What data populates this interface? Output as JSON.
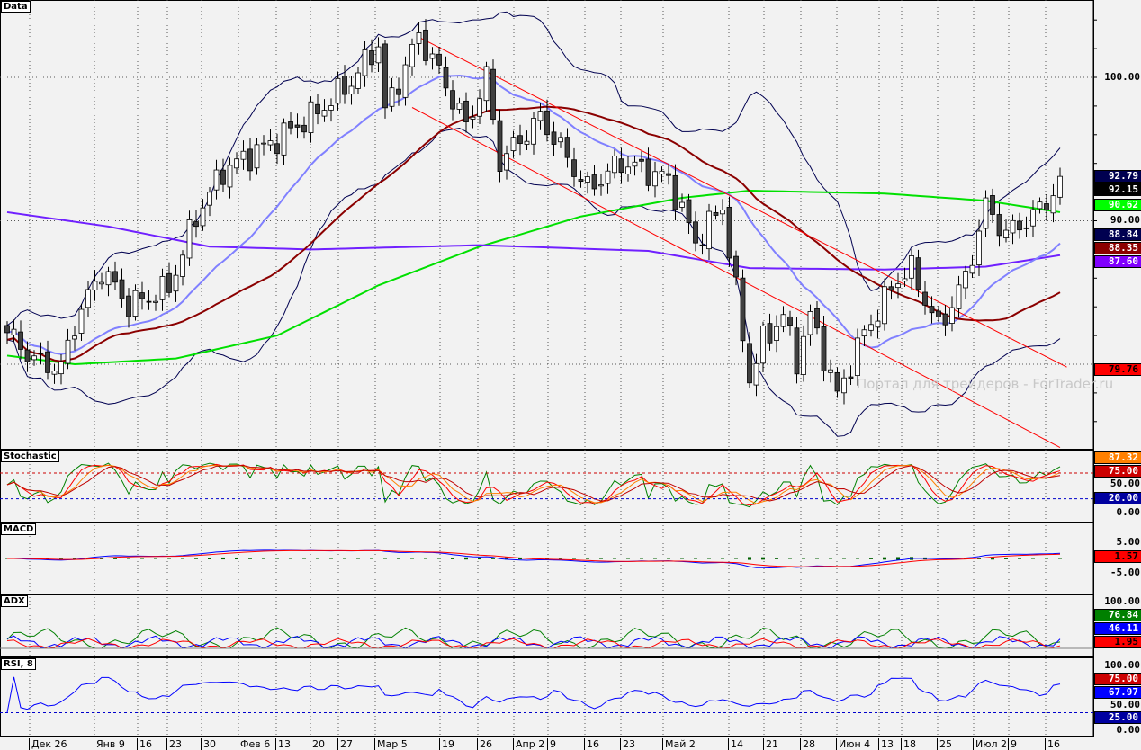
{
  "panels": {
    "main": "Data",
    "stoch": "Stochastic",
    "macd": "MACD",
    "adx": "ADX",
    "rsi": "RSI, 8"
  },
  "watermark": "Портал для трейдеров - ForTrader.ru",
  "chart_data": [
    {
      "type": "line",
      "title": "Data",
      "subtype": "candlestick",
      "ylim": [
        74,
        105
      ],
      "y_ticks": [
        "100.00",
        "90.00"
      ],
      "x_tick_labels": [
        "Дек 26",
        "Янв 9",
        "16",
        "23",
        "30",
        "Фев 6",
        "13",
        "20",
        "27",
        "Мар 5",
        "19",
        "26",
        "Апр 2",
        "9",
        "16",
        "23",
        "Май 2",
        "14",
        "21",
        "28",
        "Июн 4",
        "13",
        "18",
        "25",
        "Июл 2",
        "9",
        "16"
      ],
      "close_keypoints": [
        [
          0,
          82.2
        ],
        [
          4,
          80.3
        ],
        [
          8,
          79.7
        ],
        [
          10,
          82.8
        ],
        [
          14,
          86.6
        ],
        [
          18,
          84.1
        ],
        [
          24,
          85.3
        ],
        [
          28,
          90.3
        ],
        [
          32,
          93.5
        ],
        [
          39,
          95.4
        ],
        [
          46,
          97.6
        ],
        [
          51,
          99.7
        ],
        [
          55,
          102.3
        ],
        [
          56,
          97.6
        ],
        [
          61,
          102.9
        ],
        [
          64,
          100.4
        ],
        [
          68,
          96.6
        ],
        [
          71,
          100
        ],
        [
          73,
          94.1
        ],
        [
          79,
          97.2
        ],
        [
          86,
          92.2
        ],
        [
          91,
          94.1
        ],
        [
          98,
          92.9
        ],
        [
          102,
          88.5
        ],
        [
          106,
          91
        ],
        [
          110,
          79
        ],
        [
          112,
          81.6
        ],
        [
          115,
          83.4
        ],
        [
          117,
          80.3
        ],
        [
          119,
          83.4
        ],
        [
          123,
          77.8
        ],
        [
          127,
          82.2
        ],
        [
          132,
          86
        ],
        [
          134,
          86.6
        ],
        [
          138,
          82.5
        ],
        [
          142,
          86
        ],
        [
          145,
          91
        ],
        [
          148,
          89.1
        ],
        [
          152,
          90.3
        ],
        [
          156,
          92.5
        ]
      ],
      "ma_green_keypoints": [
        [
          0,
          80.6
        ],
        [
          10,
          80.0
        ],
        [
          25,
          80.4
        ],
        [
          40,
          82
        ],
        [
          55,
          85.5
        ],
        [
          70,
          88.2
        ],
        [
          85,
          90.3
        ],
        [
          100,
          91.6
        ],
        [
          110,
          92.1
        ],
        [
          130,
          91.9
        ],
        [
          145,
          91.4
        ],
        [
          156,
          90.6
        ]
      ],
      "ma_purple_keypoints": [
        [
          0,
          90.6
        ],
        [
          15,
          89.6
        ],
        [
          30,
          88.2
        ],
        [
          45,
          88.0
        ],
        [
          70,
          88.3
        ],
        [
          95,
          87.9
        ],
        [
          110,
          86.7
        ],
        [
          130,
          86.6
        ],
        [
          145,
          86.8
        ],
        [
          156,
          87.6
        ]
      ],
      "trendlines": [
        {
          "from": [
            61,
            102.8
          ],
          "to": [
            157,
            79.8
          ]
        },
        {
          "from": [
            60,
            97.9
          ],
          "to": [
            156,
            74.2
          ]
        }
      ],
      "price_tags": [
        {
          "value": "92.79",
          "color": "#000050"
        },
        {
          "value": "92.15",
          "color": "#000000"
        },
        {
          "value": "90.62",
          "color": "#00ff00"
        },
        {
          "value": "88.84",
          "color": "#000050"
        },
        {
          "value": "88.35",
          "color": "#8b0000"
        },
        {
          "value": "87.60",
          "color": "#8000ff"
        },
        {
          "value": "79.76",
          "color": "#ff0000"
        }
      ]
    },
    {
      "type": "line",
      "title": "Stochastic",
      "ylim": [
        0,
        100
      ],
      "y_ticks": [
        "100.00",
        "50.00",
        "0.00"
      ],
      "levels": [
        75,
        20
      ],
      "tags": [
        {
          "value": "87.32",
          "color": "#ff8000"
        },
        {
          "value": "75.00",
          "color": "#cc0000"
        },
        {
          "value": "20.00",
          "color": "#0000a0"
        }
      ]
    },
    {
      "type": "line",
      "title": "MACD",
      "y_ticks": [
        "5.00",
        "-5.00"
      ],
      "tags": [
        {
          "value": "1.57",
          "color": "#ff0000"
        }
      ]
    },
    {
      "type": "line",
      "title": "ADX",
      "ylim": [
        0,
        100
      ],
      "y_ticks": [
        "100.00"
      ],
      "tags": [
        {
          "value": "76.84",
          "color": "#008000"
        },
        {
          "value": "46.11",
          "color": "#0000ff"
        },
        {
          "value": "1.95",
          "color": "#ff0000"
        }
      ]
    },
    {
      "type": "line",
      "title": "RSI, 8",
      "ylim": [
        0,
        100
      ],
      "y_ticks": [
        "100.00",
        "50.00",
        "0.00"
      ],
      "levels": [
        75,
        25
      ],
      "tags": [
        {
          "value": "75.00",
          "color": "#cc0000"
        },
        {
          "value": "67.97",
          "color": "#0000ff"
        },
        {
          "value": "25.00",
          "color": "#0000a0"
        }
      ]
    }
  ]
}
